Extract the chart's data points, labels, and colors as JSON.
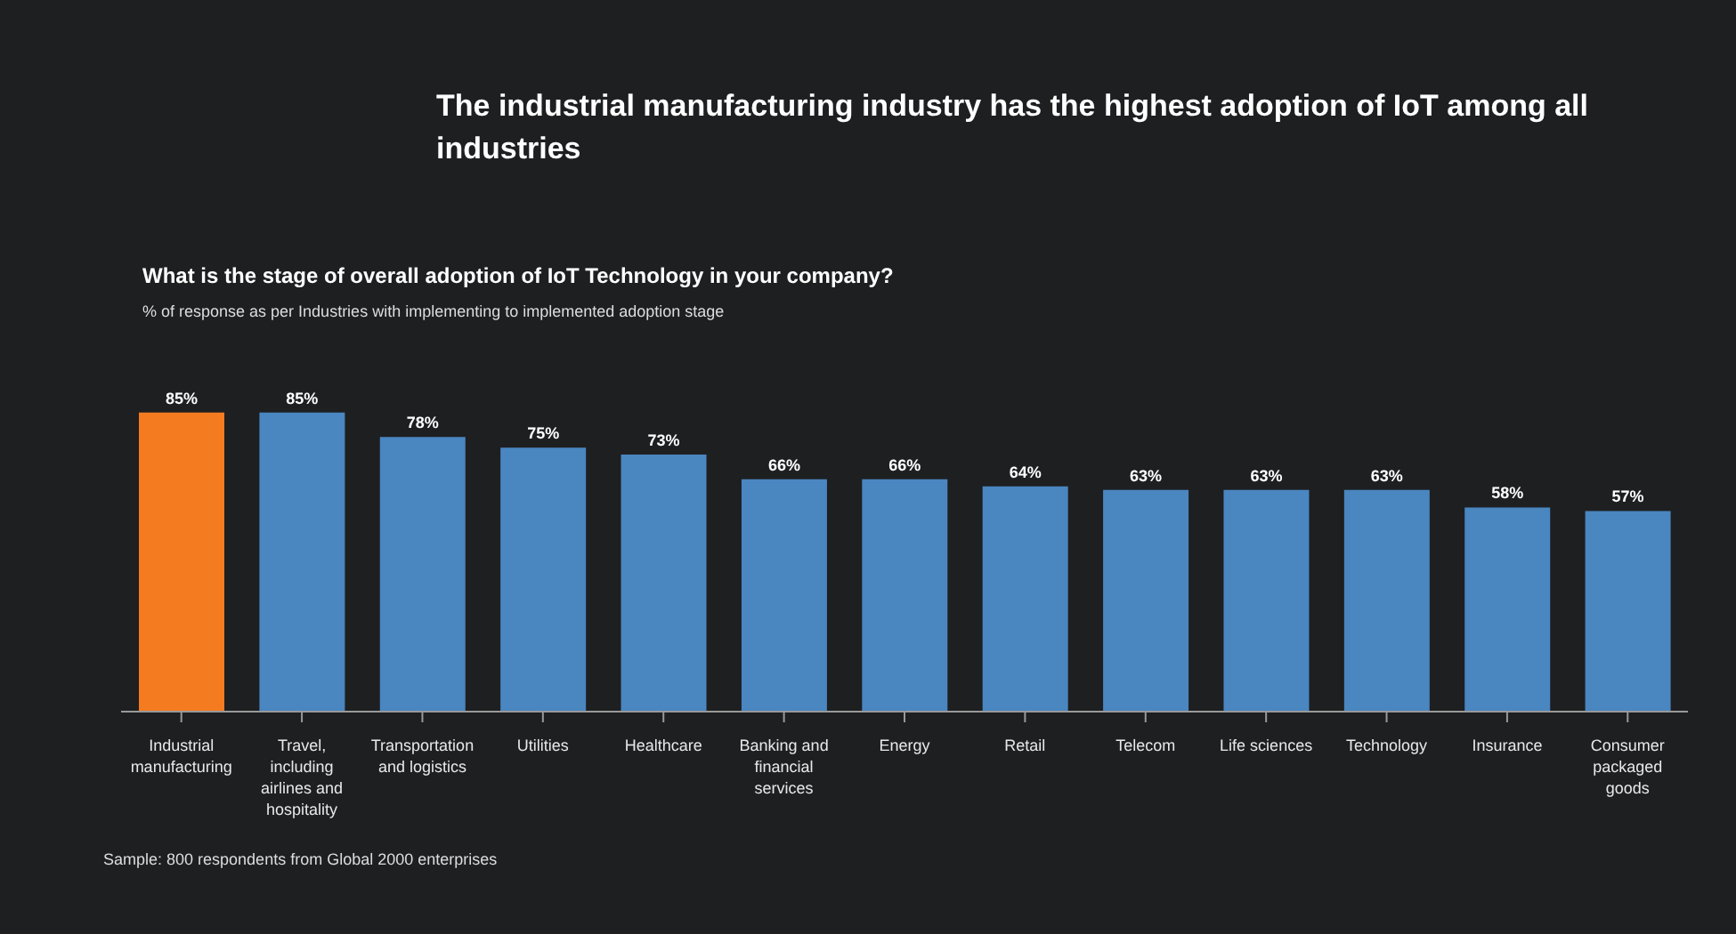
{
  "chart_data": {
    "type": "bar",
    "title": "The industrial manufacturing industry has the highest adoption of IoT among all industries",
    "subtitle": "What is the stage of overall adoption of IoT Technology in your company?",
    "annotations": [
      "% of response as per Industries with implementing to implemented adoption stage",
      "Sample: 800 respondents from Global 2000 enterprises"
    ],
    "categories": [
      "Industrial manufacturing",
      "Travel, including airlines and hospitality",
      "Transportation and logistics",
      "Utilities",
      "Healthcare",
      "Banking and financial services",
      "Energy",
      "Retail",
      "Telecom",
      "Life sciences",
      "Technology",
      "Insurance",
      "Consumer packaged goods"
    ],
    "values": [
      85,
      85,
      78,
      75,
      73,
      66,
      66,
      64,
      63,
      63,
      63,
      58,
      57
    ],
    "value_labels": [
      "85%",
      "85%",
      "78%",
      "75%",
      "73%",
      "66%",
      "66%",
      "64%",
      "63%",
      "63%",
      "63%",
      "58%",
      "57%"
    ],
    "colors": [
      "#f47b20",
      "#4a86c0",
      "#4a86c0",
      "#4a86c0",
      "#4a86c0",
      "#4a86c0",
      "#4a86c0",
      "#4a86c0",
      "#4a86c0",
      "#4a86c0",
      "#4a86c0",
      "#4a86c0",
      "#4a86c0"
    ],
    "legend": false,
    "grid": false
  }
}
